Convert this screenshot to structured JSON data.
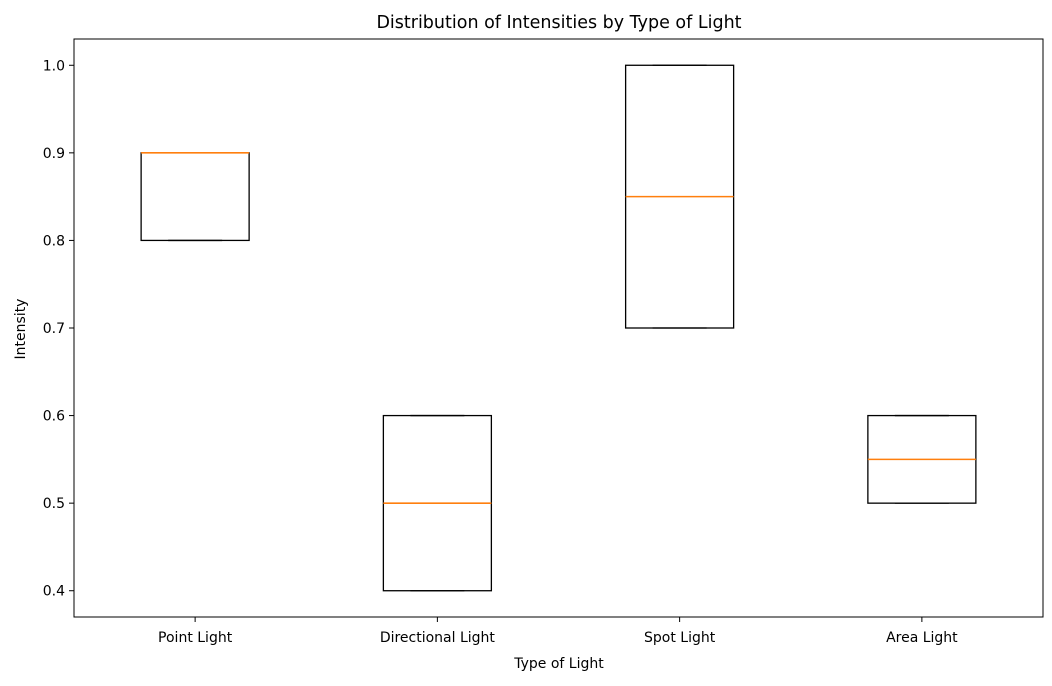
{
  "chart_data": {
    "type": "box",
    "title": "Distribution of Intensities by Type of Light",
    "xlabel": "Type of Light",
    "ylabel": "Intensity",
    "ylim": [
      0.37,
      1.03
    ],
    "yticks": [
      0.4,
      0.5,
      0.6,
      0.7,
      0.8,
      0.9,
      1.0
    ],
    "ytick_labels": [
      "0.4",
      "0.5",
      "0.6",
      "0.7",
      "0.8",
      "0.9",
      "1.0"
    ],
    "grid": false,
    "categories": [
      "Point Light",
      "Directional Light",
      "Spot Light",
      "Area Light"
    ],
    "boxes": [
      {
        "category": "Point Light",
        "whisker_low": 0.8,
        "q1": 0.8,
        "median": 0.9,
        "q3": 0.9,
        "whisker_high": 0.9
      },
      {
        "category": "Directional Light",
        "whisker_low": 0.4,
        "q1": 0.4,
        "median": 0.5,
        "q3": 0.6,
        "whisker_high": 0.6
      },
      {
        "category": "Spot Light",
        "whisker_low": 0.7,
        "q1": 0.7,
        "median": 0.85,
        "q3": 1.0,
        "whisker_high": 1.0
      },
      {
        "category": "Area Light",
        "whisker_low": 0.5,
        "q1": 0.5,
        "median": 0.55,
        "q3": 0.6,
        "whisker_high": 0.6
      }
    ],
    "colors": {
      "box": "#000000",
      "median": "#ff7f0e",
      "axes": "#000000"
    }
  }
}
